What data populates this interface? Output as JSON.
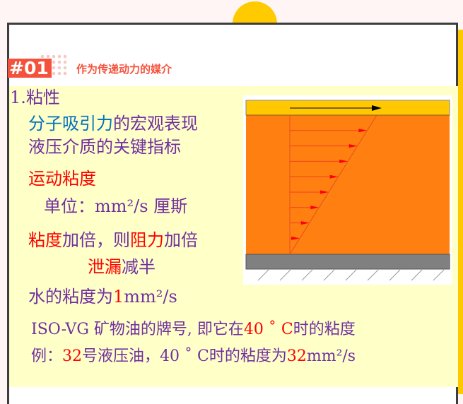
{
  "header": {
    "badge": "#01",
    "subtitle": "作为传递动力的媒介"
  },
  "lines": {
    "l1": "1.粘性",
    "l2a": "分子吸引力",
    "l2b": "的宏观表现",
    "l3": "液压介质的关键指标",
    "l4": "运动粘度",
    "l5": "单位：mm²/s 厘斯",
    "l6a": "粘度",
    "l6b": "加倍，则",
    "l6c": "阻力",
    "l6d": "加倍",
    "l7a": "泄漏",
    "l7b": "减半",
    "l8a": "水的粘度为",
    "l8b": "1",
    "l8c": "mm²/s",
    "l9a": "ISO-VG 矿物油的牌号, 即它在",
    "l9b": "40 ˚ C",
    "l9c": "时的粘度",
    "l10a": "例：",
    "l10b": "32",
    "l10c": "号液压油，40 ˚ C时的粘度为",
    "l10d": "32",
    "l10e": "mm²/s"
  },
  "colors": {
    "text": "#7030a0",
    "highlight_red": "#ff0000",
    "highlight_blue": "#0070c0",
    "accent": "#f5523c",
    "background": "#ffffc8",
    "fluid": "#ff8010",
    "moving_plate": "#ffc800",
    "fixed_plate": "#808080"
  },
  "diagram": {
    "icon": "velocity-profile-icon",
    "velocity_arrows": 8
  }
}
